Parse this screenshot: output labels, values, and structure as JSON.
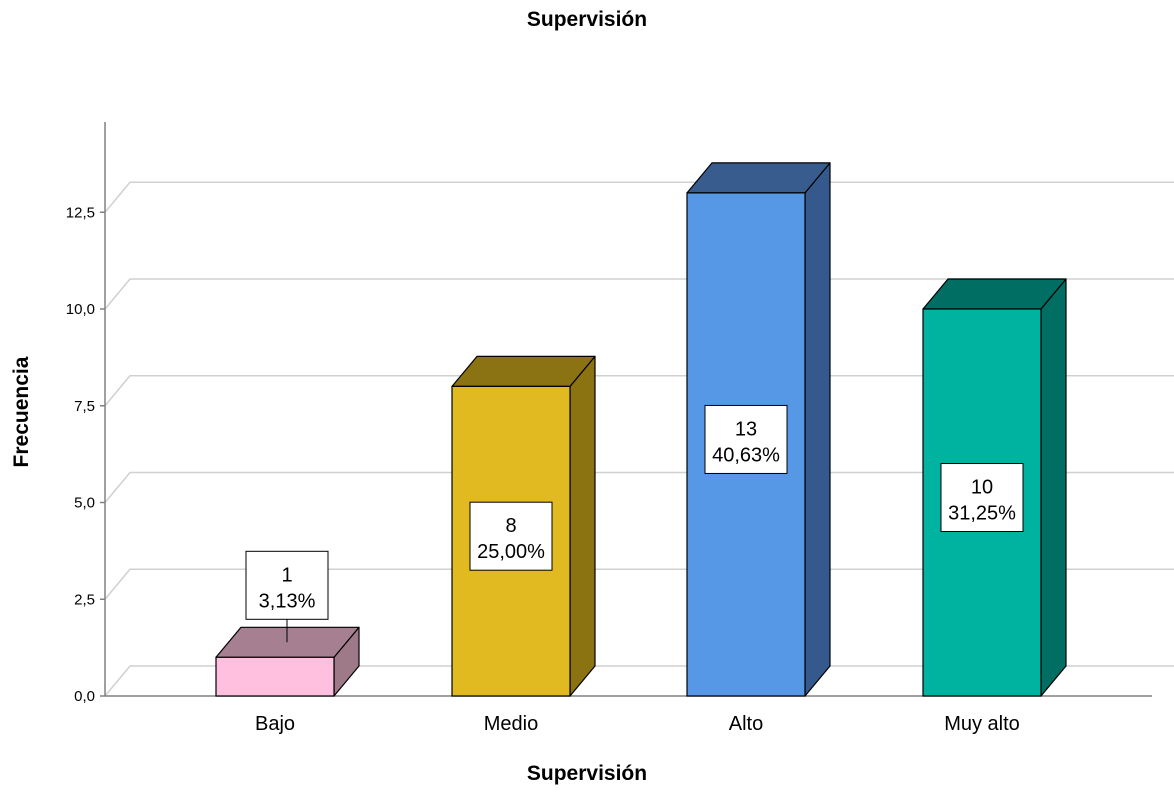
{
  "chart_data": {
    "type": "bar",
    "title": "Supervisión",
    "xlabel": "Supervisión",
    "ylabel": "Frecuencia",
    "categories": [
      "Bajo",
      "Medio",
      "Alto",
      "Muy alto"
    ],
    "values": [
      1,
      8,
      13,
      10
    ],
    "data_labels": [
      {
        "count": "1",
        "percent": "3,13%"
      },
      {
        "count": "8",
        "percent": "25,00%"
      },
      {
        "count": "13",
        "percent": "40,63%"
      },
      {
        "count": "10",
        "percent": "31,25%"
      }
    ],
    "colors": [
      {
        "front": "#FFC0E0",
        "side": "#9E7A88",
        "top": "#A68090"
      },
      {
        "front": "#E0BA20",
        "side": "#8B7312",
        "top": "#8B7314"
      },
      {
        "front": "#5697E6",
        "side": "#35598D",
        "top": "#385C8E"
      },
      {
        "front": "#00B3A0",
        "side": "#006E62",
        "top": "#006E62"
      }
    ],
    "y_ticks": [
      "0,0",
      "2,5",
      "5,0",
      "7,5",
      "10,0",
      "12,5"
    ],
    "y_tick_values": [
      0,
      2.5,
      5,
      7.5,
      10,
      12.5
    ],
    "ylim": [
      0,
      13
    ],
    "grid": true,
    "style": "3d"
  }
}
